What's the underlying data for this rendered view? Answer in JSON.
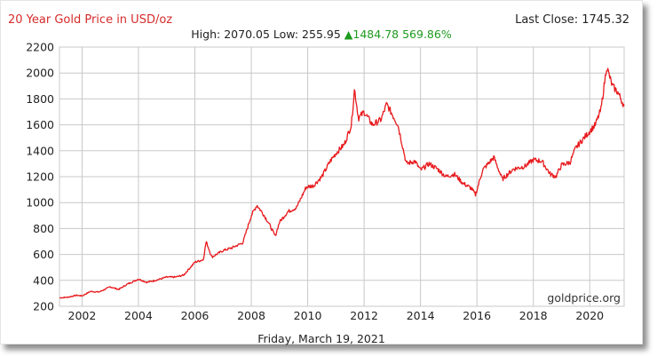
{
  "header": {
    "title": "20 Year Gold Price in USD/oz",
    "last_close": "Last Close: 1745.32",
    "high_label": "High:",
    "high_value": "2070.05",
    "low_label": "Low:",
    "low_value": "255.95",
    "change_arrow": "▲",
    "change_value": "1484.78",
    "change_percent": "569.86%"
  },
  "footer": {
    "date": "Friday, March 19, 2021",
    "watermark": "goldprice.org"
  },
  "colors": {
    "line": "#e8191c",
    "title": "#d62b2b",
    "up": "#1e9a1e",
    "grid": "#c8c8c8"
  },
  "chart_data": {
    "type": "line",
    "title": "20 Year Gold Price in USD/oz",
    "xlabel": "",
    "ylabel": "",
    "xlim": [
      2001.2,
      2021.22
    ],
    "ylim": [
      200,
      2200
    ],
    "x_ticks": [
      2002,
      2004,
      2006,
      2008,
      2010,
      2012,
      2014,
      2016,
      2018,
      2020
    ],
    "x_tick_labels": [
      "2002",
      "2004",
      "2006",
      "2008",
      "2010",
      "2012",
      "2014",
      "2016",
      "2018",
      "2020"
    ],
    "y_ticks": [
      200,
      400,
      600,
      800,
      1000,
      1200,
      1400,
      1600,
      1800,
      2000,
      2200
    ],
    "y_tick_labels": [
      "200",
      "400",
      "600",
      "800",
      "1000",
      "1200",
      "1400",
      "1600",
      "1800",
      "2000",
      "2200"
    ],
    "grid": true,
    "series": [
      {
        "color": "#e8191c",
        "x": [
          2001.2,
          2001.5,
          2001.8,
          2002.0,
          2002.3,
          2002.6,
          2003.0,
          2003.3,
          2003.6,
          2004.0,
          2004.3,
          2004.6,
          2005.0,
          2005.3,
          2005.6,
          2006.0,
          2006.3,
          2006.4,
          2006.6,
          2007.0,
          2007.3,
          2007.7,
          2008.0,
          2008.2,
          2008.4,
          2008.6,
          2008.85,
          2009.0,
          2009.3,
          2009.6,
          2009.95,
          2010.2,
          2010.5,
          2010.8,
          2011.0,
          2011.3,
          2011.55,
          2011.66,
          2011.8,
          2012.0,
          2012.3,
          2012.6,
          2012.8,
          2013.0,
          2013.2,
          2013.35,
          2013.5,
          2013.8,
          2014.0,
          2014.3,
          2014.6,
          2014.9,
          2015.2,
          2015.5,
          2015.8,
          2015.95,
          2016.2,
          2016.6,
          2016.9,
          2017.3,
          2017.7,
          2018.0,
          2018.3,
          2018.6,
          2018.8,
          2019.0,
          2019.3,
          2019.5,
          2019.8,
          2020.0,
          2020.2,
          2020.4,
          2020.6,
          2020.8,
          2021.0,
          2021.22
        ],
        "y": [
          265,
          270,
          285,
          280,
          315,
          310,
          350,
          330,
          370,
          410,
          385,
          400,
          425,
          425,
          440,
          540,
          560,
          700,
          580,
          630,
          650,
          690,
          900,
          980,
          920,
          850,
          740,
          850,
          930,
          960,
          1120,
          1130,
          1200,
          1320,
          1380,
          1450,
          1600,
          1880,
          1650,
          1700,
          1600,
          1640,
          1760,
          1680,
          1600,
          1450,
          1300,
          1320,
          1250,
          1300,
          1260,
          1200,
          1220,
          1150,
          1110,
          1060,
          1250,
          1350,
          1180,
          1260,
          1280,
          1330,
          1320,
          1220,
          1200,
          1290,
          1310,
          1420,
          1500,
          1550,
          1600,
          1720,
          2050,
          1900,
          1850,
          1745
        ]
      }
    ]
  }
}
